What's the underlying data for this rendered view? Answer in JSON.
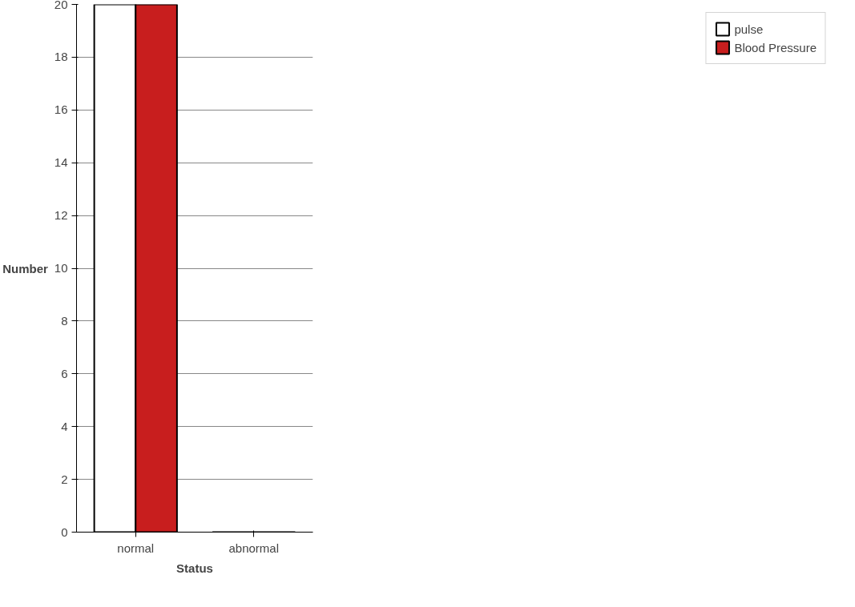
{
  "chart_data": {
    "type": "bar",
    "xlabel": "Status",
    "ylabel": "Number",
    "categories": [
      "normal",
      "abnormal"
    ],
    "series": [
      {
        "name": "pulse",
        "color": "#ffffff",
        "values": [
          20,
          0
        ]
      },
      {
        "name": "Blood Pressure",
        "color": "#c81e1e",
        "values": [
          20,
          0
        ]
      }
    ],
    "ylim": [
      0,
      20
    ],
    "yticks": [
      0,
      2,
      4,
      6,
      8,
      10,
      12,
      14,
      16,
      18,
      20
    ],
    "grid": "y",
    "legend": "right"
  }
}
